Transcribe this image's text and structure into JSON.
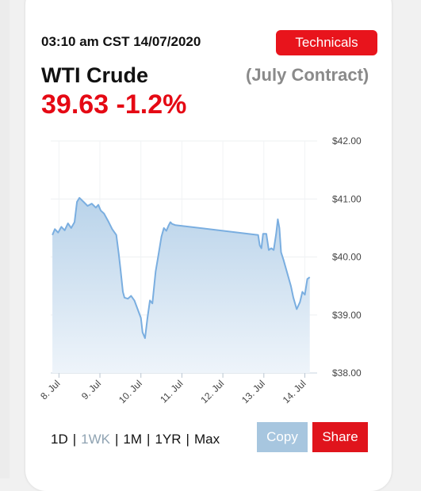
{
  "header": {
    "timestamp": "03:10 am CST 14/07/2020",
    "technicals_label": "Technicals",
    "symbol": "WTI Crude",
    "contract": "(July Contract)",
    "price_change": "39.63 -1.2%"
  },
  "colors": {
    "accent_red": "#e50914",
    "line": "#7aaee0",
    "fill_top": "#b9d3ea",
    "fill_bottom": "#eef4fa",
    "copy_button": "#a7c6df"
  },
  "ranges": {
    "d1": "1D",
    "wk": "1WK",
    "m1": "1M",
    "yr1": "1YR",
    "max": "Max",
    "selected": "1WK"
  },
  "actions": {
    "copy_label": "Copy",
    "share_label": "Share"
  },
  "chart_data": {
    "type": "area",
    "title": "",
    "xlabel": "",
    "ylabel": "",
    "ylim": [
      38.0,
      42.0
    ],
    "grid": true,
    "y_ticks": [
      "$42.00",
      "$41.00",
      "$40.00",
      "$39.00",
      "$38.00"
    ],
    "x_ticks": [
      "8. Jul",
      "9. Jul",
      "10. Jul",
      "11. Jul",
      "12. Jul",
      "13. Jul",
      "14. Jul"
    ],
    "x_tick_days": [
      8,
      9,
      10,
      11,
      12,
      13,
      14
    ],
    "series": [
      {
        "x": [
          7.84,
          7.9,
          7.98,
          8.06,
          8.14,
          8.22,
          8.3,
          8.38,
          8.44,
          8.5,
          8.6,
          8.7,
          8.8,
          8.9,
          8.96,
          9.02,
          9.1,
          9.2,
          9.3,
          9.4,
          9.46,
          9.5,
          9.56,
          9.6,
          9.68,
          9.76,
          9.84,
          9.92,
          10.0,
          10.04,
          10.1,
          10.16,
          10.22,
          10.28,
          10.36,
          10.42,
          10.5,
          10.56,
          10.62,
          10.68,
          10.72,
          10.76,
          10.8,
          10.84,
          12.86,
          12.9,
          12.94,
          12.98,
          13.06,
          13.12,
          13.18,
          13.24,
          13.3,
          13.34,
          13.38,
          13.42,
          13.48,
          13.54,
          13.6,
          13.66,
          13.72,
          13.8,
          13.88,
          13.94,
          14.0,
          14.06,
          14.12
        ],
        "y": [
          40.38,
          40.48,
          40.42,
          40.52,
          40.46,
          40.58,
          40.5,
          40.6,
          40.95,
          41.02,
          40.95,
          40.88,
          40.92,
          40.85,
          40.9,
          40.8,
          40.75,
          40.62,
          40.48,
          40.38,
          40.05,
          39.8,
          39.4,
          39.3,
          39.28,
          39.33,
          39.25,
          39.1,
          38.95,
          38.7,
          38.6,
          38.95,
          39.25,
          39.2,
          39.75,
          40.0,
          40.35,
          40.5,
          40.45,
          40.55,
          40.6,
          40.57,
          40.56,
          40.55,
          40.38,
          40.2,
          40.15,
          40.4,
          40.4,
          40.12,
          40.15,
          40.12,
          40.4,
          40.65,
          40.5,
          40.08,
          39.95,
          39.8,
          39.65,
          39.5,
          39.3,
          39.1,
          39.22,
          39.4,
          39.35,
          39.62,
          39.65
        ]
      }
    ]
  }
}
